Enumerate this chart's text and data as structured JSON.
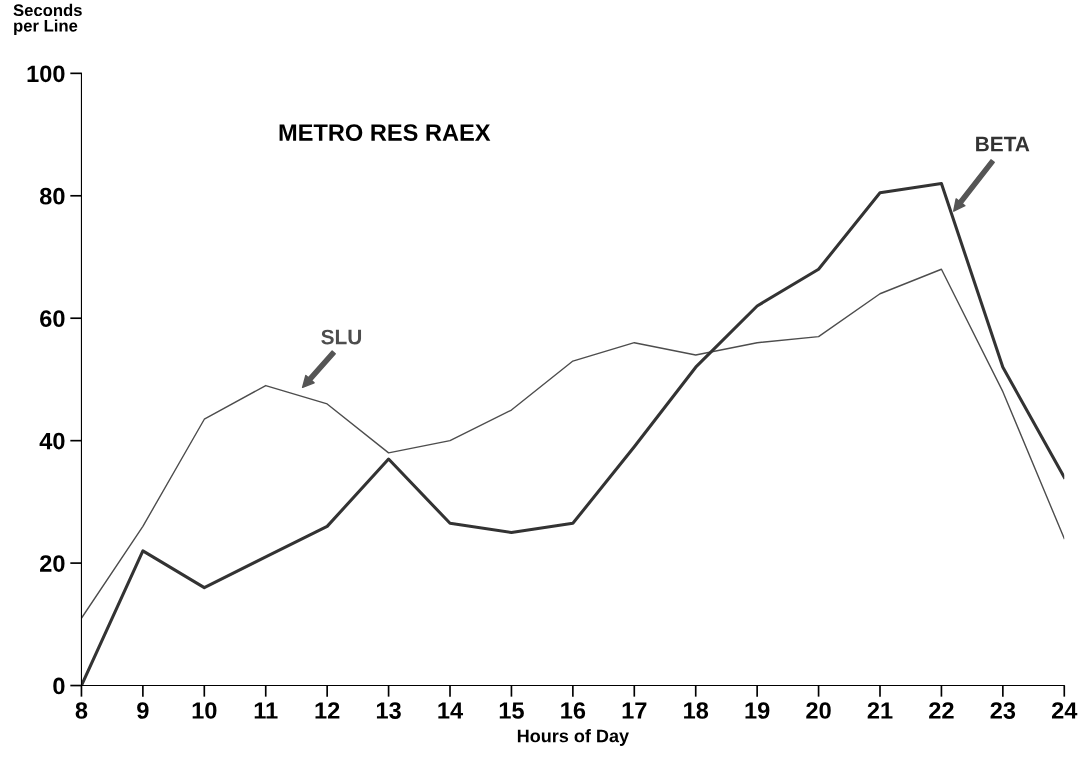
{
  "chart_data": {
    "type": "line",
    "title": "METRO RES RAEX",
    "xlabel": "Hours of Day",
    "ylabel": "Seconds\nper Line",
    "x": [
      8,
      9,
      10,
      11,
      12,
      13,
      14,
      15,
      16,
      17,
      18,
      19,
      20,
      21,
      22,
      23,
      24
    ],
    "series": [
      {
        "name": "SLU",
        "color": "#4d4d4d",
        "values": [
          11,
          26,
          43.5,
          49,
          46,
          38,
          40,
          45,
          53,
          56,
          54,
          56,
          57,
          64,
          68,
          48,
          24
        ]
      },
      {
        "name": "BETA",
        "color": "#333333",
        "values": [
          0,
          22,
          16,
          21,
          26,
          37,
          26.5,
          25,
          26.5,
          39,
          52,
          62,
          68,
          80.5,
          82,
          52,
          34
        ]
      }
    ],
    "xlim": [
      8,
      24
    ],
    "ylim": [
      0,
      100
    ],
    "xticks": [
      8,
      9,
      10,
      11,
      12,
      13,
      14,
      15,
      16,
      17,
      18,
      19,
      20,
      21,
      22,
      23,
      24
    ],
    "yticks": [
      0,
      20,
      40,
      60,
      80,
      100
    ],
    "grid": false,
    "legend": false,
    "marker": "none",
    "line_style": "solid"
  }
}
